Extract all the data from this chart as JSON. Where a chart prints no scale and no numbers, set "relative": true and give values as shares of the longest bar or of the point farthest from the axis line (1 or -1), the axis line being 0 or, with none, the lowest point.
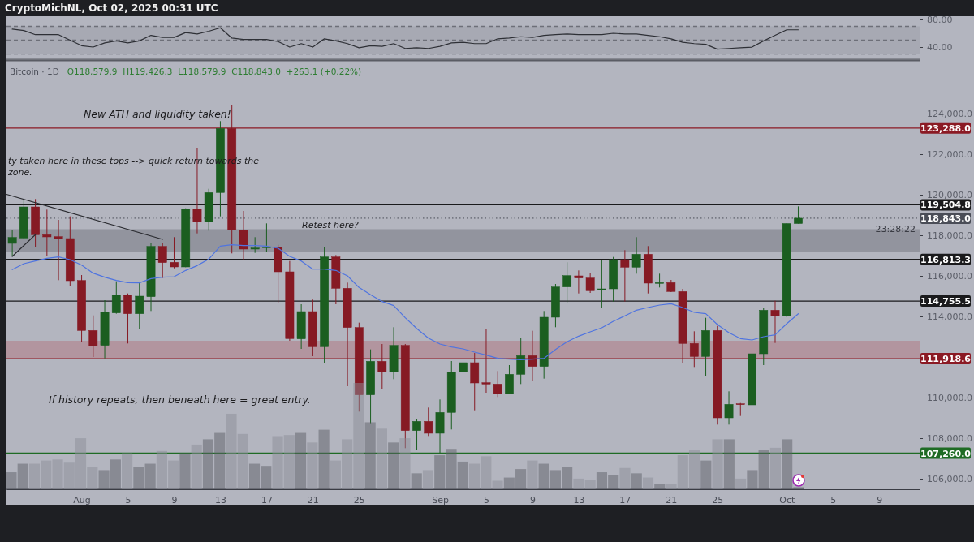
{
  "chart_data": [
    {
      "type": "line",
      "title": "CryptoMichNL, Oct 02, 2025 00:31 UTC",
      "x": [
        "2025-07-26",
        "2025-07-27",
        "2025-07-28",
        "2025-07-29",
        "2025-07-30",
        "2025-07-31",
        "2025-08-01",
        "2025-08-02",
        "2025-08-03",
        "2025-08-04",
        "2025-08-05",
        "2025-08-06",
        "2025-08-07",
        "2025-08-08",
        "2025-08-09",
        "2025-08-10",
        "2025-08-11",
        "2025-08-12",
        "2025-08-13",
        "2025-08-14",
        "2025-08-15",
        "2025-08-16",
        "2025-08-17",
        "2025-08-18",
        "2025-08-19",
        "2025-08-20",
        "2025-08-21",
        "2025-08-22",
        "2025-08-23",
        "2025-08-24",
        "2025-08-25",
        "2025-08-26",
        "2025-08-27",
        "2025-08-28",
        "2025-08-29",
        "2025-08-30",
        "2025-08-31",
        "2025-09-01",
        "2025-09-02",
        "2025-09-03",
        "2025-09-04",
        "2025-09-05",
        "2025-09-06",
        "2025-09-07",
        "2025-09-08",
        "2025-09-09",
        "2025-09-10",
        "2025-09-11",
        "2025-09-12",
        "2025-09-13",
        "2025-09-14",
        "2025-09-15",
        "2025-09-16",
        "2025-09-17",
        "2025-09-18",
        "2025-09-19",
        "2025-09-20",
        "2025-09-21",
        "2025-09-22",
        "2025-09-23",
        "2025-09-24",
        "2025-09-25",
        "2025-09-26",
        "2025-09-27",
        "2025-09-28",
        "2025-09-29",
        "2025-09-30",
        "2025-10-01",
        "2025-10-02"
      ],
      "xlim": [
        "2025-07-25T12:00",
        "2025-10-12T12:00"
      ],
      "ylim": [
        22.4,
        84.7
      ],
      "yticks": [
        {
          "value": 80,
          "label": "80.00"
        },
        {
          "value": 40,
          "label": "40.00"
        }
      ],
      "tick_labels": "y",
      "series": [
        {
          "color": "#2e3036",
          "values": [
            66,
            64,
            58,
            58,
            58,
            50,
            42,
            40,
            46,
            49,
            46,
            49,
            57,
            54,
            54,
            61,
            59,
            63,
            68,
            53,
            51,
            51,
            51,
            48,
            40,
            45,
            40,
            52,
            49,
            45,
            39,
            42,
            41,
            45,
            38,
            39,
            38,
            41,
            46,
            47,
            45,
            45,
            52,
            53,
            55,
            54,
            57,
            58,
            59,
            58,
            58,
            58,
            60,
            59,
            59,
            57,
            55,
            52,
            47,
            45,
            44,
            37,
            38,
            39,
            40,
            49,
            57,
            65,
            65
          ]
        }
      ],
      "ref_lines": [
        {
          "axis": "y",
          "value": 70,
          "line_style": "dashed",
          "color": "#6d6f78"
        },
        {
          "axis": "y",
          "value": 50,
          "line_style": "dashed",
          "color": "#6d6f78"
        },
        {
          "axis": "y",
          "value": 30,
          "line_style": "dashed",
          "color": "#6d6f78"
        }
      ],
      "bands": [
        {
          "axis": "y",
          "from": 30,
          "to": 70,
          "color": "#9fa1ab"
        }
      ]
    },
    {
      "type": "candlestick",
      "title": "Bitcoin · 1D",
      "subtitle": "O118,579.9  H119,426.3  L118,579.9  C118,843.0  +263.1 (+0.22%)",
      "x": [
        "2025-07-26",
        "2025-07-27",
        "2025-07-28",
        "2025-07-29",
        "2025-07-30",
        "2025-07-31",
        "2025-08-01",
        "2025-08-02",
        "2025-08-03",
        "2025-08-04",
        "2025-08-05",
        "2025-08-06",
        "2025-08-07",
        "2025-08-08",
        "2025-08-09",
        "2025-08-10",
        "2025-08-11",
        "2025-08-12",
        "2025-08-13",
        "2025-08-14",
        "2025-08-15",
        "2025-08-16",
        "2025-08-17",
        "2025-08-18",
        "2025-08-19",
        "2025-08-20",
        "2025-08-21",
        "2025-08-22",
        "2025-08-23",
        "2025-08-24",
        "2025-08-25",
        "2025-08-26",
        "2025-08-27",
        "2025-08-28",
        "2025-08-29",
        "2025-08-30",
        "2025-08-31",
        "2025-09-01",
        "2025-09-02",
        "2025-09-03",
        "2025-09-04",
        "2025-09-05",
        "2025-09-06",
        "2025-09-07",
        "2025-09-08",
        "2025-09-09",
        "2025-09-10",
        "2025-09-11",
        "2025-09-12",
        "2025-09-13",
        "2025-09-14",
        "2025-09-15",
        "2025-09-16",
        "2025-09-17",
        "2025-09-18",
        "2025-09-19",
        "2025-09-20",
        "2025-09-21",
        "2025-09-22",
        "2025-09-23",
        "2025-09-24",
        "2025-09-25",
        "2025-09-26",
        "2025-09-27",
        "2025-09-28",
        "2025-09-29",
        "2025-09-30",
        "2025-10-01",
        "2025-10-02"
      ],
      "ohlc": [
        [
          117600,
          118267,
          116960,
          117895
        ],
        [
          117867,
          119733,
          117800,
          119400
        ],
        [
          119400,
          119787,
          117400,
          118027
        ],
        [
          118027,
          119267,
          116960,
          117920
        ],
        [
          117933,
          118760,
          115787,
          117827
        ],
        [
          117840,
          118933,
          115493,
          115760
        ],
        [
          115773,
          116040,
          112733,
          113307
        ],
        [
          113307,
          114053,
          112000,
          112533
        ],
        [
          112573,
          114800,
          111933,
          114200
        ],
        [
          114173,
          115733,
          114133,
          115040
        ],
        [
          115040,
          115133,
          112667,
          114133
        ],
        [
          114133,
          115693,
          113373,
          115000
        ],
        [
          114973,
          117600,
          114267,
          117453
        ],
        [
          117453,
          117640,
          115893,
          116653
        ],
        [
          116667,
          117907,
          116373,
          116440
        ],
        [
          116440,
          119333,
          116427,
          119293
        ],
        [
          119293,
          122293,
          118093,
          118680
        ],
        [
          118680,
          120293,
          118227,
          120107
        ],
        [
          120107,
          123627,
          118933,
          123267
        ],
        [
          123267,
          124427,
          117107,
          118267
        ],
        [
          118267,
          119200,
          116760,
          117320
        ],
        [
          117320,
          117907,
          117133,
          117373
        ],
        [
          117387,
          118587,
          117173,
          117427
        ],
        [
          117400,
          117533,
          114667,
          116200
        ],
        [
          116200,
          116733,
          112800,
          112907
        ],
        [
          112893,
          114600,
          112400,
          114240
        ],
        [
          114240,
          114827,
          112040,
          112507
        ],
        [
          112507,
          117400,
          111707,
          116933
        ],
        [
          116933,
          117027,
          114600,
          115387
        ],
        [
          115387,
          115667,
          110560,
          113453
        ],
        [
          113453,
          113693,
          109307,
          110133
        ],
        [
          110133,
          112373,
          108733,
          111787
        ],
        [
          111787,
          112640,
          110400,
          111267
        ],
        [
          111267,
          113467,
          110907,
          112573
        ],
        [
          112573,
          112640,
          107507,
          108373
        ],
        [
          108373,
          108933,
          107400,
          108827
        ],
        [
          108827,
          109507,
          108107,
          108240
        ],
        [
          108240,
          109907,
          107267,
          109267
        ],
        [
          109267,
          111800,
          108427,
          111253
        ],
        [
          111253,
          112600,
          110573,
          111720
        ],
        [
          111720,
          112200,
          109373,
          110720
        ],
        [
          110733,
          113400,
          110240,
          110667
        ],
        [
          110667,
          111307,
          110027,
          110187
        ],
        [
          110187,
          111600,
          110173,
          111147
        ],
        [
          111147,
          112933,
          110667,
          112067
        ],
        [
          112067,
          113293,
          110827,
          111533
        ],
        [
          111533,
          114267,
          110933,
          113960
        ],
        [
          113960,
          115600,
          113467,
          115453
        ],
        [
          115453,
          116667,
          114693,
          116013
        ],
        [
          116000,
          116267,
          115133,
          115893
        ],
        [
          115893,
          116160,
          115160,
          115267
        ],
        [
          115293,
          116760,
          114427,
          115360
        ],
        [
          115360,
          116933,
          114733,
          116800
        ],
        [
          116800,
          117267,
          114733,
          116427
        ],
        [
          116427,
          117907,
          116107,
          117067
        ],
        [
          117067,
          117467,
          115133,
          115640
        ],
        [
          115640,
          116107,
          115427,
          115667
        ],
        [
          115667,
          115800,
          115200,
          115227
        ],
        [
          115227,
          115360,
          111707,
          112667
        ],
        [
          112667,
          113267,
          111507,
          112027
        ],
        [
          112027,
          113933,
          111067,
          113307
        ],
        [
          113307,
          113533,
          108667,
          109000
        ],
        [
          109000,
          110307,
          108667,
          109667
        ],
        [
          109693,
          109733,
          109093,
          109667
        ],
        [
          109640,
          112360,
          109267,
          112160
        ],
        [
          112160,
          114400,
          111600,
          114307
        ],
        [
          114307,
          114773,
          112693,
          114040
        ],
        [
          114040,
          118600,
          113973,
          118580
        ],
        [
          118579.9,
          119426.3,
          118579.9,
          118843.0
        ]
      ],
      "xlim": [
        "2025-07-25T12:00",
        "2025-10-12T12:00"
      ],
      "xticks": [
        {
          "value": "2025-08-01",
          "label": "Aug"
        },
        {
          "value": "2025-08-05",
          "label": "5"
        },
        {
          "value": "2025-08-09",
          "label": "9"
        },
        {
          "value": "2025-08-13",
          "label": "13"
        },
        {
          "value": "2025-08-17",
          "label": "17"
        },
        {
          "value": "2025-08-21",
          "label": "21"
        },
        {
          "value": "2025-08-25",
          "label": "25"
        },
        {
          "value": "2025-09-01",
          "label": "Sep"
        },
        {
          "value": "2025-09-05",
          "label": "5"
        },
        {
          "value": "2025-09-09",
          "label": "9"
        },
        {
          "value": "2025-09-13",
          "label": "13"
        },
        {
          "value": "2025-09-17",
          "label": "17"
        },
        {
          "value": "2025-09-21",
          "label": "21"
        },
        {
          "value": "2025-09-25",
          "label": "25"
        },
        {
          "value": "2025-10-01",
          "label": "Oct"
        },
        {
          "value": "2025-10-05",
          "label": "5"
        },
        {
          "value": "2025-10-09",
          "label": "9"
        }
      ],
      "ylim": [
        105480,
        126560
      ],
      "yticks": [
        {
          "value": 106000,
          "label": "106,000.0"
        },
        {
          "value": 108000,
          "label": "108,000.0"
        },
        {
          "value": 110000,
          "label": "110,000.0"
        },
        {
          "value": 114000,
          "label": "114,000.0"
        },
        {
          "value": 116000,
          "label": "116,000.0"
        },
        {
          "value": 118000,
          "label": "118,000.0"
        },
        {
          "value": 120000,
          "label": "120,000.0"
        },
        {
          "value": 122000,
          "label": "122,000.0"
        },
        {
          "value": 124000,
          "label": "124,000.0"
        }
      ],
      "series": [
        {
          "type": "line",
          "color": "#4f74e0",
          "values": [
            116307,
            116600,
            116733,
            116867,
            116933,
            116800,
            116533,
            116133,
            115933,
            115773,
            115667,
            115653,
            115867,
            115933,
            115960,
            116267,
            116507,
            116827,
            117467,
            117533,
            117493,
            117493,
            117467,
            117360,
            116960,
            116733,
            116333,
            116333,
            116267,
            116000,
            115427,
            115067,
            114733,
            114533,
            113933,
            113400,
            112933,
            112640,
            112493,
            112400,
            112240,
            112093,
            111933,
            111893,
            111867,
            111893,
            111933,
            112367,
            112747,
            113027,
            113240,
            113440,
            113760,
            114027,
            114307,
            114440,
            114560,
            114627,
            114440,
            114200,
            114133,
            113600,
            113200,
            112907,
            112840,
            113000,
            113093,
            113640,
            114133
          ]
        },
        {
          "type": "line",
          "color": "#2a2b30",
          "x": [
            "2025-07-25T12:00",
            "2025-08-08"
          ],
          "values": [
            120020,
            117800
          ]
        },
        {
          "type": "line",
          "color": "#2a2b30",
          "x": [
            "2025-07-26",
            "2025-07-28"
          ],
          "values": [
            116960,
            118030
          ]
        }
      ],
      "ref_lines": [
        {
          "axis": "y",
          "value": 123288.0,
          "label": "123,288.0",
          "color": "#8b1a24"
        },
        {
          "axis": "y",
          "value": 119504.8,
          "label": "119,504.8",
          "color": "#1a1a1c"
        },
        {
          "axis": "y",
          "value": 118843.0,
          "label": "118,843.0",
          "color": "#4a4d57",
          "line_style": "dotted"
        },
        {
          "axis": "y",
          "value": 116813.3,
          "label": "116,813.3",
          "color": "#1a1a1c"
        },
        {
          "axis": "y",
          "value": 114755.5,
          "label": "114,755.5",
          "color": "#1a1a1c"
        },
        {
          "axis": "y",
          "value": 111918.6,
          "label": "111,918.6",
          "color": "#8b1a24"
        },
        {
          "axis": "y",
          "value": 107260.0,
          "label": "107,260.0",
          "color": "#1e6b24"
        }
      ],
      "bands": [
        {
          "axis": "y",
          "from": 117200,
          "to": 118300,
          "color": "#7c7f88"
        },
        {
          "axis": "y",
          "from": 111900,
          "to": 112800,
          "color": "#b0808a"
        }
      ],
      "annotations": [
        "New ATH and liquidity taken!",
        "ty taken here in these tops --> quick return towards the\nzone.",
        "Retest here?",
        "If history repeats, then beneath here = great entry.",
        "23:28:22"
      ]
    },
    {
      "type": "bar",
      "relative": true,
      "categories": [
        null,
        null,
        null,
        null,
        null,
        null,
        null,
        null,
        null,
        null,
        null,
        null,
        null,
        null,
        null,
        null,
        null,
        null,
        null,
        null,
        null,
        null,
        null,
        null,
        null,
        null,
        null,
        null,
        null,
        null,
        null,
        null,
        null,
        null,
        null,
        null,
        null,
        null,
        null,
        null,
        null,
        null,
        null,
        null,
        null,
        null,
        null,
        null,
        null,
        null,
        null,
        null,
        null,
        null,
        null,
        null,
        null,
        null,
        null,
        null,
        null,
        null,
        null,
        null,
        null,
        null,
        null,
        null,
        null
      ],
      "values": [
        0.16,
        0.24,
        0.24,
        0.27,
        0.28,
        0.25,
        0.48,
        0.21,
        0.18,
        0.28,
        0.34,
        0.21,
        0.24,
        0.36,
        0.27,
        0.34,
        0.42,
        0.47,
        0.53,
        0.71,
        0.52,
        0.24,
        0.22,
        0.5,
        0.51,
        0.53,
        0.44,
        0.56,
        0.27,
        0.47,
        1,
        0.63,
        0.57,
        0.44,
        0.48,
        0.15,
        0.18,
        0.32,
        0.38,
        0.26,
        0.24,
        0.31,
        0.08,
        0.11,
        0.19,
        0.27,
        0.24,
        0.18,
        0.21,
        0.1,
        0.09,
        0.16,
        0.13,
        0.2,
        0.15,
        0.11,
        0.05,
        0.05,
        0.32,
        0.37,
        0.27,
        0.47,
        0.47,
        0.1,
        0.18,
        0.37,
        0.39,
        0.47,
        0.02
      ],
      "colors": [
        "#5e6067",
        "#5e6067",
        "#8c8e98",
        "#8c8e98",
        "#8c8e98",
        "#8c8e98",
        "#8c8e98",
        "#8c8e98",
        "#5e6067",
        "#5e6067",
        "#8c8e98",
        "#5e6067",
        "#5e6067",
        "#8c8e98",
        "#8c8e98",
        "#5e6067",
        "#8c8e98",
        "#5e6067",
        "#5e6067",
        "#8c8e98",
        "#8c8e98",
        "#5e6067",
        "#5e6067",
        "#8c8e98",
        "#8c8e98",
        "#5e6067",
        "#8c8e98",
        "#5e6067",
        "#8c8e98",
        "#8c8e98",
        "#8c8e98",
        "#5e6067",
        "#8c8e98",
        "#5e6067",
        "#8c8e98",
        "#5e6067",
        "#8c8e98",
        "#5e6067",
        "#5e6067",
        "#5e6067",
        "#8c8e98",
        "#8c8e98",
        "#8c8e98",
        "#5e6067",
        "#5e6067",
        "#8c8e98",
        "#5e6067",
        "#5e6067",
        "#5e6067",
        "#8c8e98",
        "#8c8e98",
        "#5e6067",
        "#5e6067",
        "#8c8e98",
        "#5e6067",
        "#8c8e98",
        "#5e6067",
        "#8c8e98",
        "#8c8e98",
        "#8c8e98",
        "#5e6067",
        "#8c8e98",
        "#5e6067",
        "#8c8e98",
        "#5e6067",
        "#5e6067",
        "#8c8e98",
        "#5e6067",
        "#5e6067"
      ]
    }
  ]
}
